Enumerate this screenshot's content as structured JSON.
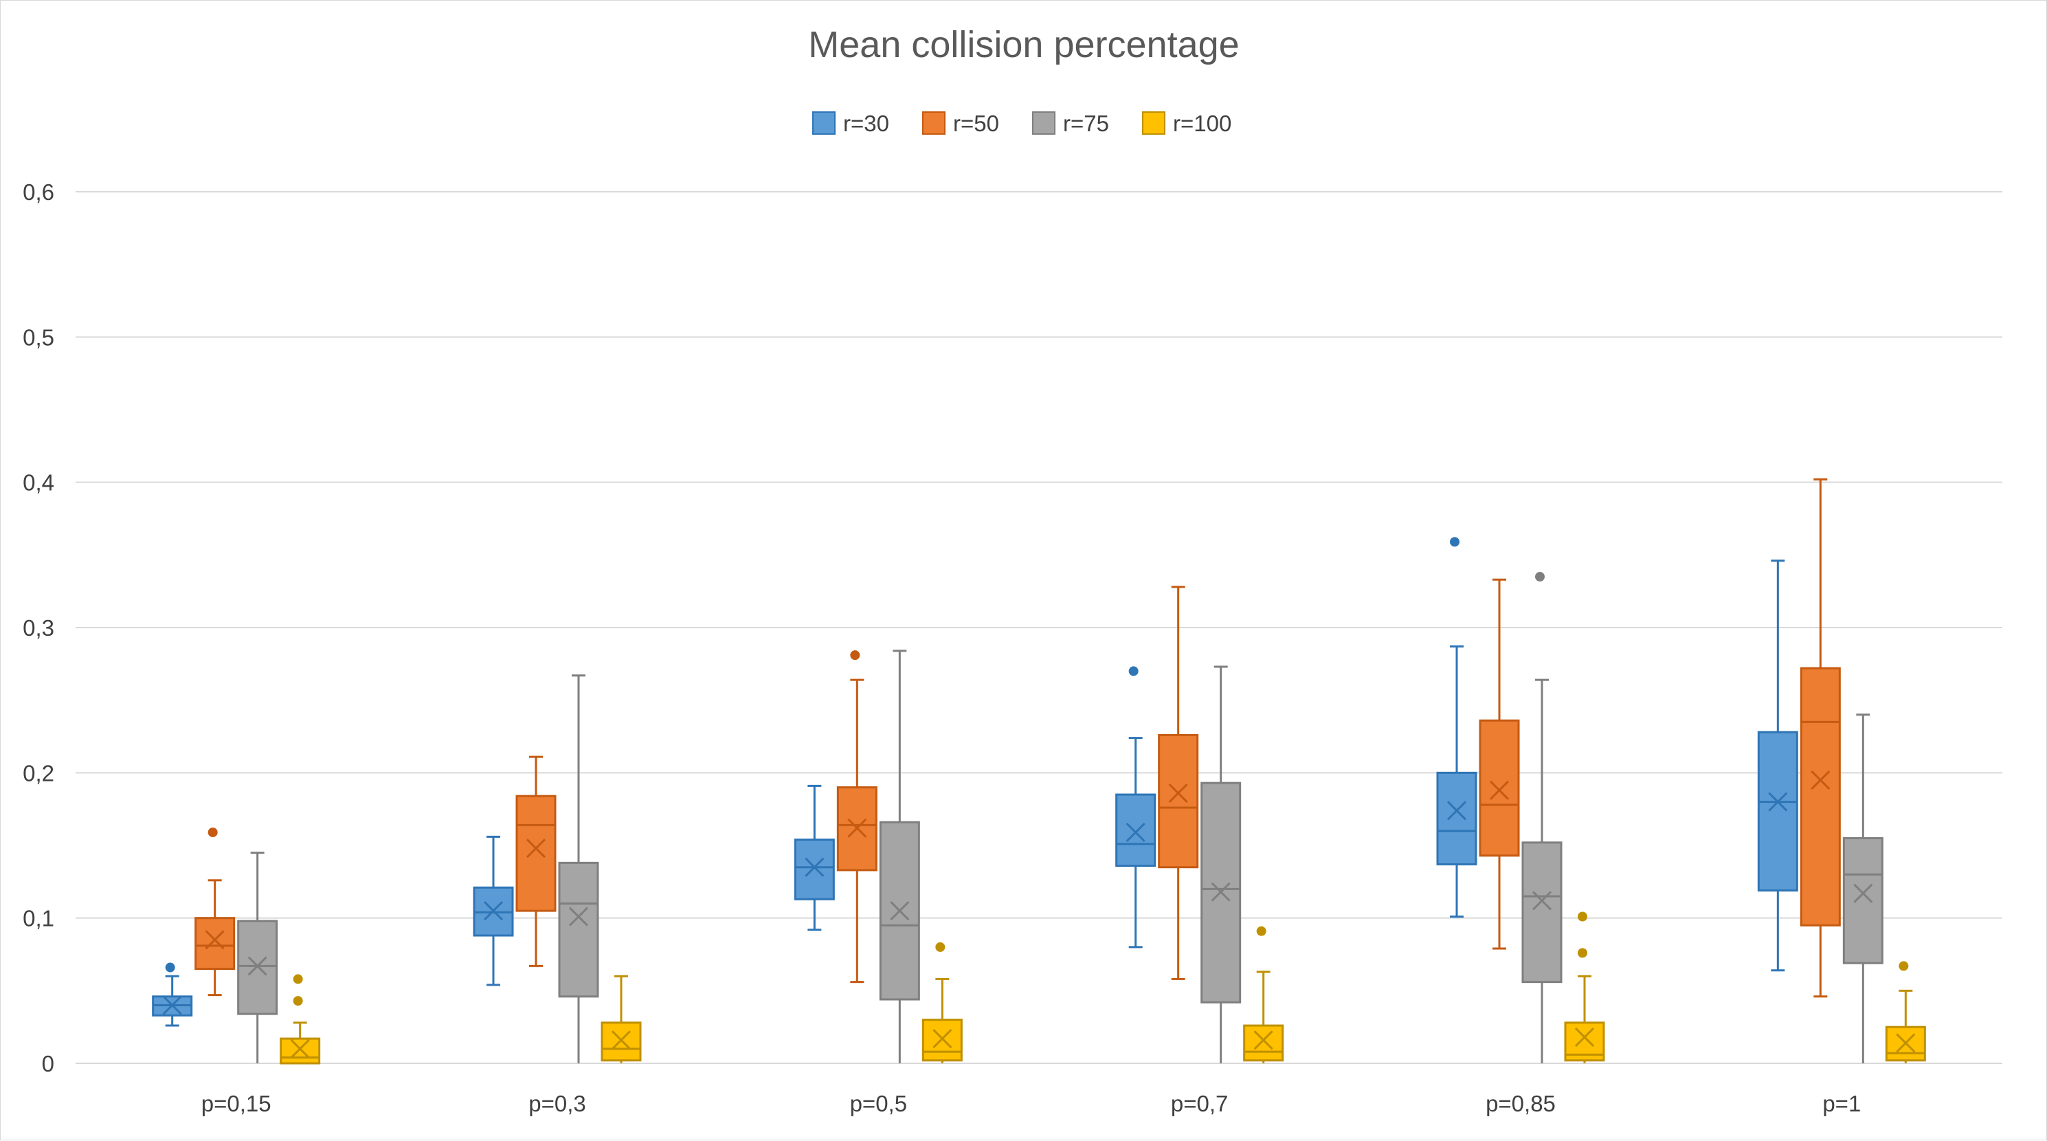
{
  "chart_data": {
    "type": "boxplot",
    "title": "Mean collision percentage",
    "xlabel": "",
    "ylabel": "",
    "categories": [
      "p=0,15",
      "p=0,3",
      "p=0,5",
      "p=0,7",
      "p=0,85",
      "p=1"
    ],
    "yticks": [
      "0",
      "0,1",
      "0,2",
      "0,3",
      "0,4",
      "0,5",
      "0,6"
    ],
    "ylim": [
      0,
      0.6
    ],
    "grid": true,
    "legend_position": "top-center",
    "series": [
      {
        "name": "r=30",
        "color": "#5B9BD5",
        "stroke": "#2E75B6",
        "boxes": [
          {
            "min": 0.026,
            "q1": 0.033,
            "median": 0.04,
            "q3": 0.046,
            "max": 0.06,
            "mean": 0.04,
            "outliers": [
              0.066
            ]
          },
          {
            "min": 0.054,
            "q1": 0.088,
            "median": 0.104,
            "q3": 0.121,
            "max": 0.156,
            "mean": 0.105,
            "outliers": []
          },
          {
            "min": 0.092,
            "q1": 0.113,
            "median": 0.135,
            "q3": 0.154,
            "max": 0.191,
            "mean": 0.135,
            "outliers": []
          },
          {
            "min": 0.08,
            "q1": 0.136,
            "median": 0.151,
            "q3": 0.185,
            "max": 0.224,
            "mean": 0.159,
            "outliers": [
              0.27
            ]
          },
          {
            "min": 0.101,
            "q1": 0.137,
            "median": 0.16,
            "q3": 0.2,
            "max": 0.287,
            "mean": 0.174,
            "outliers": [
              0.359
            ]
          },
          {
            "min": 0.064,
            "q1": 0.119,
            "median": 0.18,
            "q3": 0.228,
            "max": 0.346,
            "mean": 0.18,
            "outliers": []
          }
        ]
      },
      {
        "name": "r=50",
        "color": "#ED7D31",
        "stroke": "#C55A11",
        "boxes": [
          {
            "min": 0.047,
            "q1": 0.065,
            "median": 0.081,
            "q3": 0.1,
            "max": 0.126,
            "mean": 0.085,
            "outliers": [
              0.159
            ]
          },
          {
            "min": 0.067,
            "q1": 0.105,
            "median": 0.164,
            "q3": 0.184,
            "max": 0.211,
            "mean": 0.148,
            "outliers": []
          },
          {
            "min": 0.056,
            "q1": 0.133,
            "median": 0.164,
            "q3": 0.19,
            "max": 0.264,
            "mean": 0.162,
            "outliers": [
              0.281
            ]
          },
          {
            "min": 0.058,
            "q1": 0.135,
            "median": 0.176,
            "q3": 0.226,
            "max": 0.328,
            "mean": 0.186,
            "outliers": []
          },
          {
            "min": 0.079,
            "q1": 0.143,
            "median": 0.178,
            "q3": 0.236,
            "max": 0.333,
            "mean": 0.188,
            "outliers": []
          },
          {
            "min": 0.046,
            "q1": 0.095,
            "median": 0.235,
            "q3": 0.272,
            "max": 0.402,
            "mean": 0.195,
            "outliers": []
          }
        ]
      },
      {
        "name": "r=75",
        "color": "#A5A5A5",
        "stroke": "#7F7F7F",
        "boxes": [
          {
            "min": 0.0,
            "q1": 0.034,
            "median": 0.067,
            "q3": 0.098,
            "max": 0.145,
            "mean": 0.067,
            "outliers": []
          },
          {
            "min": 0.0,
            "q1": 0.046,
            "median": 0.11,
            "q3": 0.138,
            "max": 0.267,
            "mean": 0.101,
            "outliers": []
          },
          {
            "min": 0.0,
            "q1": 0.044,
            "median": 0.095,
            "q3": 0.166,
            "max": 0.284,
            "mean": 0.105,
            "outliers": []
          },
          {
            "min": 0.0,
            "q1": 0.042,
            "median": 0.12,
            "q3": 0.193,
            "max": 0.273,
            "mean": 0.118,
            "outliers": []
          },
          {
            "min": 0.0,
            "q1": 0.056,
            "median": 0.115,
            "q3": 0.152,
            "max": 0.264,
            "mean": 0.112,
            "outliers": [
              0.335
            ]
          },
          {
            "min": 0.0,
            "q1": 0.069,
            "median": 0.13,
            "q3": 0.155,
            "max": 0.24,
            "mean": 0.117,
            "outliers": []
          }
        ]
      },
      {
        "name": "r=100",
        "color": "#FFC000",
        "stroke": "#BF9000",
        "boxes": [
          {
            "min": 0.0,
            "q1": 0.0,
            "median": 0.004,
            "q3": 0.017,
            "max": 0.028,
            "mean": 0.01,
            "outliers": [
              0.043,
              0.058
            ]
          },
          {
            "min": 0.0,
            "q1": 0.002,
            "median": 0.01,
            "q3": 0.028,
            "max": 0.06,
            "mean": 0.016,
            "outliers": []
          },
          {
            "min": 0.0,
            "q1": 0.002,
            "median": 0.008,
            "q3": 0.03,
            "max": 0.058,
            "mean": 0.017,
            "outliers": [
              0.08
            ]
          },
          {
            "min": 0.0,
            "q1": 0.002,
            "median": 0.008,
            "q3": 0.026,
            "max": 0.063,
            "mean": 0.016,
            "outliers": [
              0.091
            ]
          },
          {
            "min": 0.0,
            "q1": 0.002,
            "median": 0.006,
            "q3": 0.028,
            "max": 0.06,
            "mean": 0.018,
            "outliers": [
              0.076,
              0.101
            ]
          },
          {
            "min": 0.0,
            "q1": 0.002,
            "median": 0.007,
            "q3": 0.025,
            "max": 0.05,
            "mean": 0.014,
            "outliers": [
              0.067
            ]
          }
        ]
      }
    ]
  }
}
